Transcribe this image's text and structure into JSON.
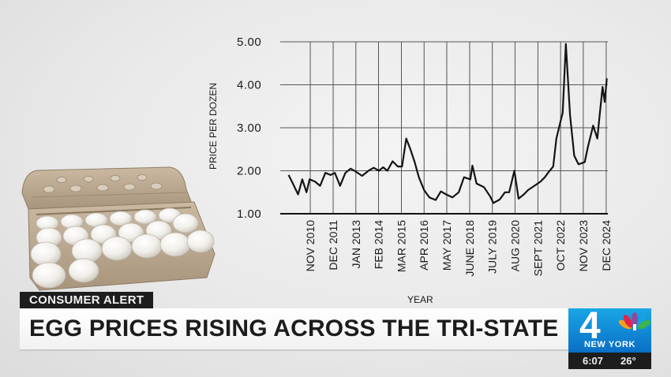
{
  "overlay": {
    "tag_label": "CONSUMER ALERT",
    "headline": "EGG PRICES RISING ACROSS THE TRI-STATE",
    "station_number": "4",
    "station_city": "NEW YORK",
    "time": "6:07",
    "temperature": "26°"
  },
  "chart_data": {
    "type": "line",
    "xlabel": "YEAR",
    "ylabel": "PRICE PER DOZEN",
    "ylim": [
      1.0,
      5.0
    ],
    "yticks": [
      "1.00",
      "2.00",
      "3.00",
      "4.00",
      "5.00"
    ],
    "xlim": [
      2009.4,
      2025.0
    ],
    "xticks": [
      {
        "label": "NOV 2010",
        "x": 2010.83
      },
      {
        "label": "DEC 2011",
        "x": 2011.92
      },
      {
        "label": "JAN 2013",
        "x": 2013.0
      },
      {
        "label": "FEB 2014",
        "x": 2014.08
      },
      {
        "label": "MAR 2015",
        "x": 2015.17
      },
      {
        "label": "APR 2016",
        "x": 2016.25
      },
      {
        "label": "MAY 2017",
        "x": 2017.33
      },
      {
        "label": "JUNE 2018",
        "x": 2018.42
      },
      {
        "label": "JULY 2019",
        "x": 2019.5
      },
      {
        "label": "AUG 2020",
        "x": 2020.58
      },
      {
        "label": "SEPT 2021",
        "x": 2021.67
      },
      {
        "label": "OCT 2022",
        "x": 2022.75
      },
      {
        "label": "NOV 2023",
        "x": 2023.83
      },
      {
        "label": "DEC 2024",
        "x": 2024.92
      }
    ],
    "grid": true,
    "series": [
      {
        "x": [
          2009.8,
          2010.0,
          2010.25,
          2010.45,
          2010.65,
          2010.8,
          2011.05,
          2011.3,
          2011.55,
          2011.8,
          2012.0,
          2012.25,
          2012.5,
          2012.75,
          2013.0,
          2013.3,
          2013.6,
          2013.85,
          2014.1,
          2014.3,
          2014.5,
          2014.75,
          2015.0,
          2015.2,
          2015.4,
          2015.6,
          2015.8,
          2016.0,
          2016.25,
          2016.5,
          2016.8,
          2017.05,
          2017.3,
          2017.6,
          2017.9,
          2018.15,
          2018.45,
          2018.55,
          2018.75,
          2019.1,
          2019.4,
          2019.55,
          2019.85,
          2020.1,
          2020.3,
          2020.55,
          2020.75,
          2021.0,
          2021.2,
          2021.5,
          2021.8,
          2022.0,
          2022.15,
          2022.4,
          2022.55,
          2022.75,
          2022.85,
          2023.0,
          2023.2,
          2023.4,
          2023.6,
          2023.9,
          2024.05,
          2024.3,
          2024.5,
          2024.6,
          2024.75,
          2024.85,
          2024.95
        ],
        "y": [
          1.9,
          1.7,
          1.45,
          1.8,
          1.5,
          1.8,
          1.75,
          1.65,
          1.95,
          1.9,
          1.95,
          1.65,
          1.95,
          2.05,
          1.98,
          1.88,
          2.0,
          2.07,
          2.0,
          2.08,
          2.0,
          2.22,
          2.1,
          2.1,
          2.75,
          2.5,
          2.2,
          1.85,
          1.55,
          1.38,
          1.32,
          1.52,
          1.45,
          1.38,
          1.5,
          1.85,
          1.8,
          2.12,
          1.7,
          1.62,
          1.4,
          1.25,
          1.33,
          1.5,
          1.5,
          2.0,
          1.35,
          1.45,
          1.55,
          1.65,
          1.75,
          1.85,
          1.95,
          2.1,
          2.75,
          3.15,
          3.35,
          4.95,
          3.3,
          2.35,
          2.15,
          2.2,
          2.55,
          3.05,
          2.75,
          3.25,
          3.95,
          3.6,
          4.15
        ]
      }
    ]
  },
  "decor": {
    "illustration": "egg-carton-image",
    "line_color": "#141414",
    "grid_color": "#555555",
    "logo_blue": "#0a6fc6"
  }
}
